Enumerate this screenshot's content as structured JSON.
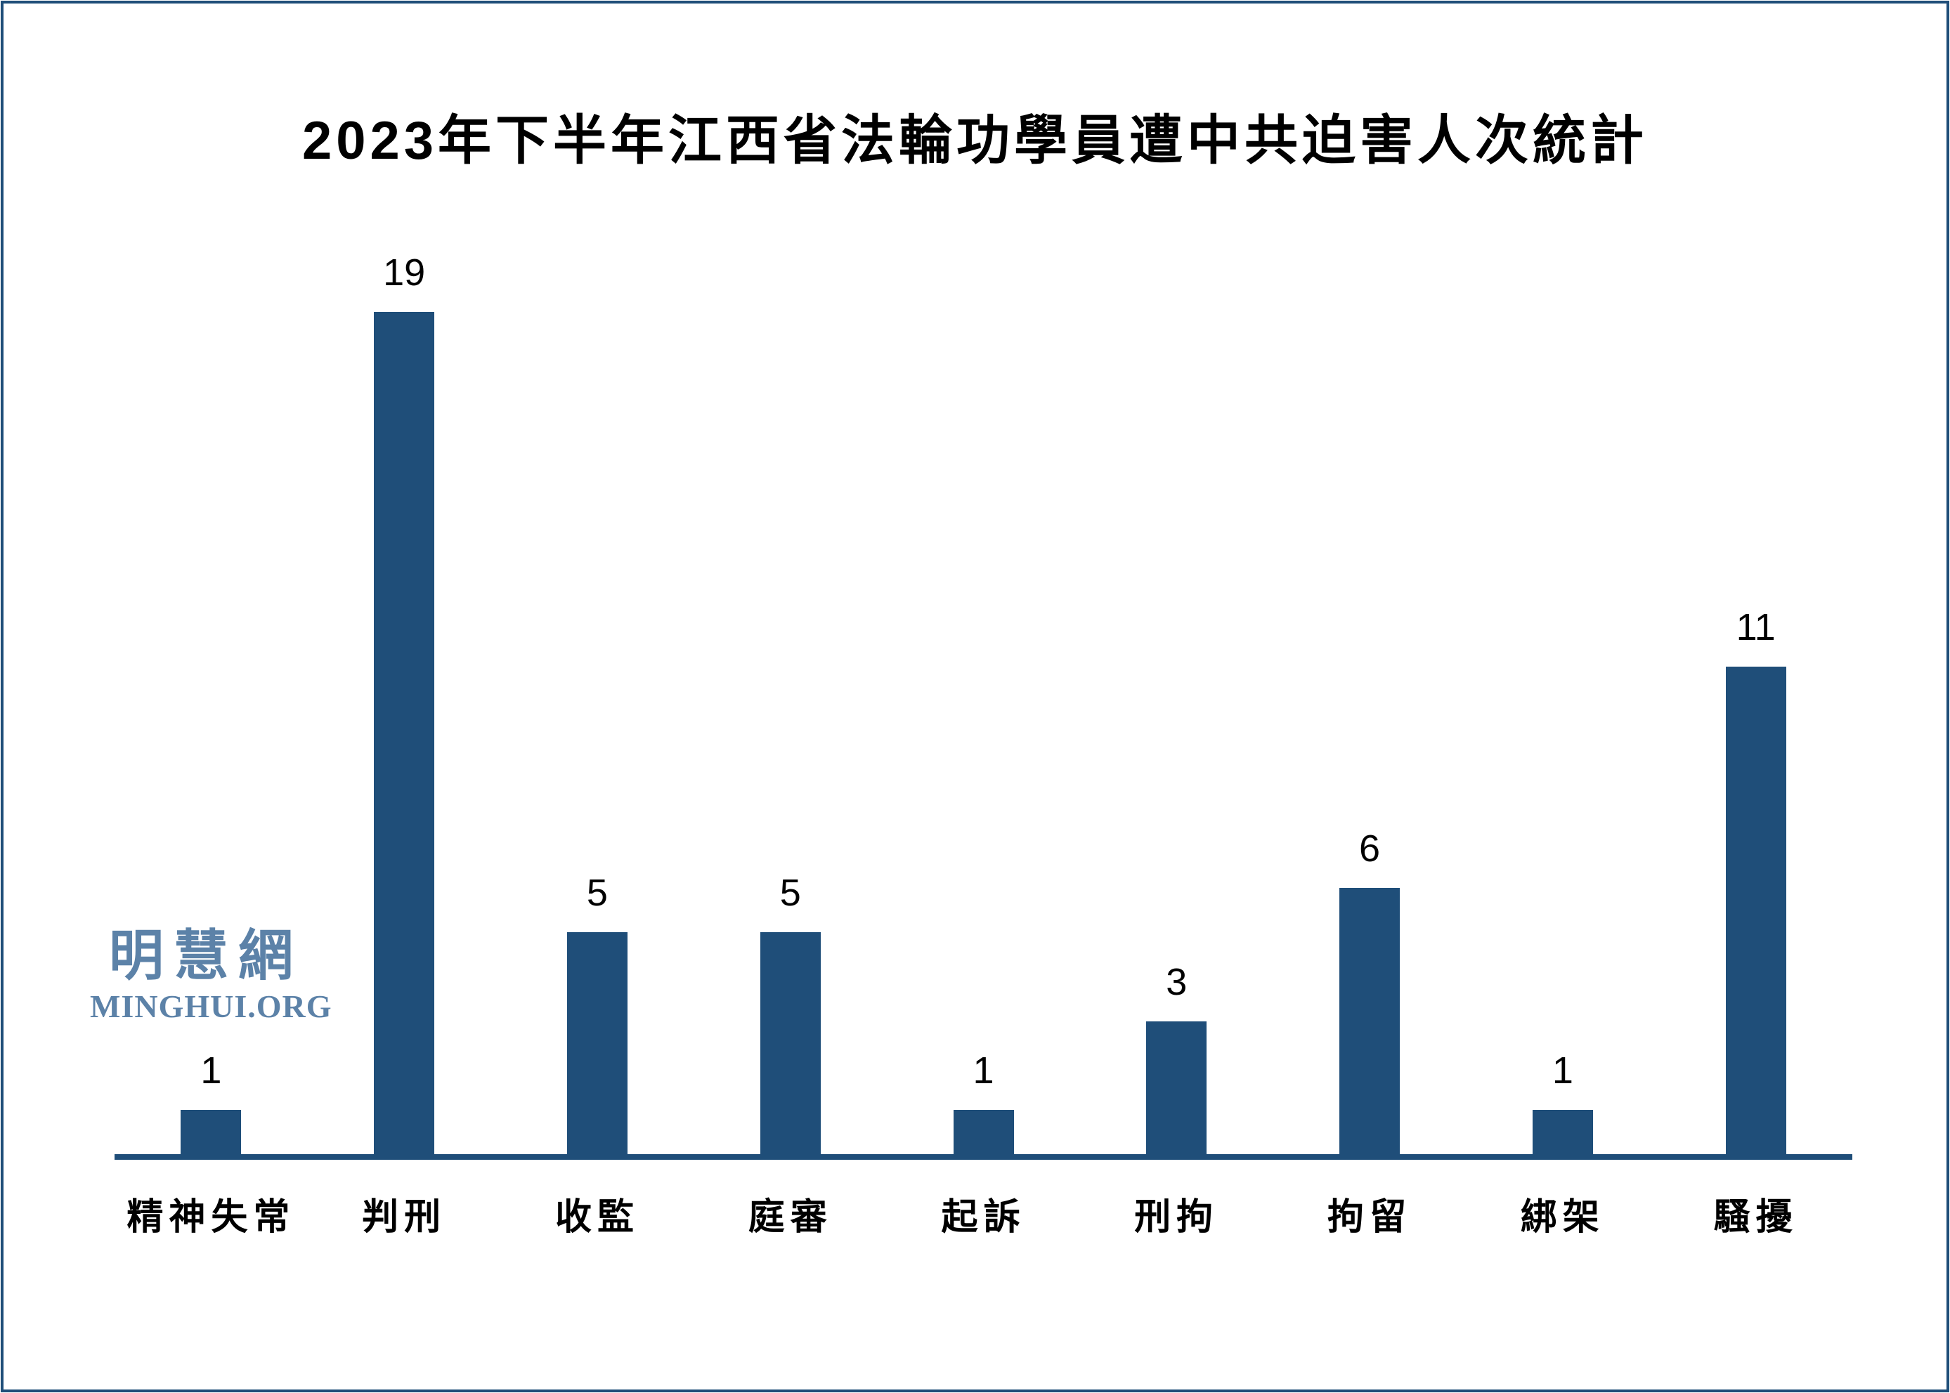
{
  "page": {
    "border_color": "#1f4e79",
    "background_color": "#ffffff"
  },
  "watermark": {
    "cn": "明慧網",
    "en": "MINGHUI.ORG",
    "color": "#5c82a8"
  },
  "chart_data": {
    "type": "bar",
    "title": "2023年下半年江西省法輪功學員遭中共迫害人次統計",
    "categories": [
      "精神失常",
      "判刑",
      "收監",
      "庭審",
      "起訴",
      "刑拘",
      "拘留",
      "綁架",
      "騷擾"
    ],
    "values": [
      1,
      19,
      5,
      5,
      1,
      3,
      6,
      1,
      11
    ],
    "value_labels_shown": true,
    "xlabel": "",
    "ylabel": "",
    "ylim": [
      0,
      19
    ],
    "grid": false,
    "legend": "none",
    "y_axis_shown": false,
    "bar_color": "#1f4e79",
    "axis_color": "#1f4e79",
    "text_color": "#000000"
  }
}
